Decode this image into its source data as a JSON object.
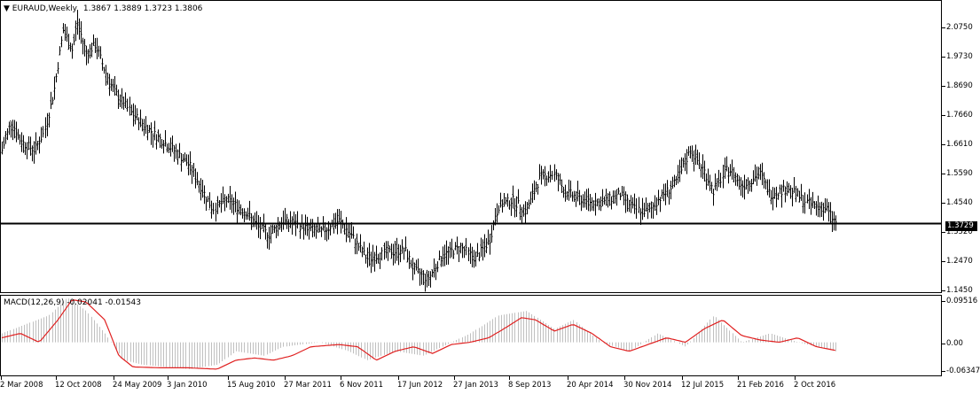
{
  "main_caption": {
    "arrow": "▼",
    "symbol": "EURAUD,Weekly",
    "ohlc": "1.3867 1.3889 1.3723 1.3806"
  },
  "macd_caption": "MACD(12,26,9) -0.02041 -0.01543",
  "price_axis": [
    "2.0750",
    "1.9730",
    "1.8690",
    "1.7660",
    "1.6610",
    "1.5590",
    "1.4540",
    "1.3520",
    "1.2470",
    "1.1450"
  ],
  "current_price": "1.3729",
  "macd_axis": [
    "0.09516",
    "0.00",
    "-0.06347"
  ],
  "time_axis": [
    "2 Mar 2008",
    "12 Oct 2008",
    "24 May 2009",
    "3 Jan 2010",
    "15 Aug 2010",
    "27 Mar 2011",
    "6 Nov 2011",
    "17 Jun 2012",
    "27 Jan 2013",
    "8 Sep 2013",
    "20 Apr 2014",
    "30 Nov 2014",
    "12 Jul 2015",
    "21 Feb 2016",
    "2 Oct 2016"
  ],
  "colors": {
    "bars": "#000000",
    "signal_line": "#e02020",
    "histogram": "#c0c0c0",
    "price_line": "#000000"
  },
  "chart_data": {
    "type": "line",
    "title": "EURAUD,Weekly",
    "ylim": [
      1.145,
      2.12
    ],
    "price_path": [
      [
        0,
        1.62
      ],
      [
        0.01,
        1.72
      ],
      [
        0.02,
        1.65
      ],
      [
        0.035,
        1.62
      ],
      [
        0.045,
        1.68
      ],
      [
        0.055,
        1.82
      ],
      [
        0.065,
        2.03
      ],
      [
        0.075,
        1.96
      ],
      [
        0.08,
        2.06
      ],
      [
        0.09,
        1.95
      ],
      [
        0.1,
        1.98
      ],
      [
        0.11,
        1.89
      ],
      [
        0.12,
        1.82
      ],
      [
        0.14,
        1.74
      ],
      [
        0.16,
        1.68
      ],
      [
        0.18,
        1.63
      ],
      [
        0.2,
        1.57
      ],
      [
        0.215,
        1.48
      ],
      [
        0.225,
        1.42
      ],
      [
        0.24,
        1.45
      ],
      [
        0.26,
        1.41
      ],
      [
        0.27,
        1.37
      ],
      [
        0.285,
        1.33
      ],
      [
        0.3,
        1.38
      ],
      [
        0.32,
        1.36
      ],
      [
        0.34,
        1.34
      ],
      [
        0.36,
        1.38
      ],
      [
        0.375,
        1.32
      ],
      [
        0.39,
        1.25
      ],
      [
        0.41,
        1.27
      ],
      [
        0.43,
        1.28
      ],
      [
        0.44,
        1.21
      ],
      [
        0.455,
        1.18
      ],
      [
        0.47,
        1.26
      ],
      [
        0.49,
        1.29
      ],
      [
        0.505,
        1.25
      ],
      [
        0.52,
        1.31
      ],
      [
        0.53,
        1.43
      ],
      [
        0.545,
        1.45
      ],
      [
        0.56,
        1.41
      ],
      [
        0.575,
        1.53
      ],
      [
        0.59,
        1.54
      ],
      [
        0.6,
        1.48
      ],
      [
        0.62,
        1.45
      ],
      [
        0.64,
        1.44
      ],
      [
        0.66,
        1.47
      ],
      [
        0.675,
        1.42
      ],
      [
        0.69,
        1.41
      ],
      [
        0.7,
        1.45
      ],
      [
        0.72,
        1.51
      ],
      [
        0.735,
        1.62
      ],
      [
        0.75,
        1.55
      ],
      [
        0.76,
        1.48
      ],
      [
        0.775,
        1.56
      ],
      [
        0.79,
        1.5
      ],
      [
        0.81,
        1.54
      ],
      [
        0.82,
        1.47
      ],
      [
        0.84,
        1.49
      ],
      [
        0.86,
        1.44
      ],
      [
        0.88,
        1.42
      ],
      [
        0.89,
        1.37
      ]
    ],
    "macd_ylim": [
      -0.07,
      0.1
    ],
    "macd_signal_path": [
      [
        0,
        0.01
      ],
      [
        0.02,
        0.02
      ],
      [
        0.04,
        0.0
      ],
      [
        0.06,
        0.05
      ],
      [
        0.075,
        0.095
      ],
      [
        0.09,
        0.09
      ],
      [
        0.11,
        0.05
      ],
      [
        0.125,
        -0.03
      ],
      [
        0.14,
        -0.055
      ],
      [
        0.17,
        -0.057
      ],
      [
        0.2,
        -0.057
      ],
      [
        0.23,
        -0.06
      ],
      [
        0.25,
        -0.04
      ],
      [
        0.27,
        -0.035
      ],
      [
        0.29,
        -0.04
      ],
      [
        0.31,
        -0.03
      ],
      [
        0.33,
        -0.01
      ],
      [
        0.36,
        -0.005
      ],
      [
        0.38,
        -0.01
      ],
      [
        0.4,
        -0.04
      ],
      [
        0.42,
        -0.02
      ],
      [
        0.44,
        -0.01
      ],
      [
        0.46,
        -0.025
      ],
      [
        0.48,
        -0.005
      ],
      [
        0.5,
        0.0
      ],
      [
        0.52,
        0.01
      ],
      [
        0.54,
        0.035
      ],
      [
        0.555,
        0.055
      ],
      [
        0.57,
        0.05
      ],
      [
        0.59,
        0.025
      ],
      [
        0.61,
        0.04
      ],
      [
        0.63,
        0.02
      ],
      [
        0.65,
        -0.01
      ],
      [
        0.67,
        -0.02
      ],
      [
        0.69,
        -0.005
      ],
      [
        0.71,
        0.01
      ],
      [
        0.73,
        0.0
      ],
      [
        0.75,
        0.03
      ],
      [
        0.77,
        0.05
      ],
      [
        0.79,
        0.015
      ],
      [
        0.81,
        0.005
      ],
      [
        0.83,
        0.0
      ],
      [
        0.85,
        0.01
      ],
      [
        0.87,
        -0.01
      ],
      [
        0.89,
        -0.018
      ]
    ],
    "macd_hist_path": [
      [
        0,
        0.02
      ],
      [
        0.05,
        0.06
      ],
      [
        0.07,
        0.1
      ],
      [
        0.09,
        0.07
      ],
      [
        0.11,
        0.02
      ],
      [
        0.13,
        -0.04
      ],
      [
        0.15,
        -0.05
      ],
      [
        0.2,
        -0.06
      ],
      [
        0.23,
        -0.05
      ],
      [
        0.25,
        -0.02
      ],
      [
        0.28,
        -0.03
      ],
      [
        0.3,
        -0.01
      ],
      [
        0.34,
        0.0
      ],
      [
        0.37,
        -0.02
      ],
      [
        0.39,
        -0.04
      ],
      [
        0.42,
        -0.02
      ],
      [
        0.45,
        -0.03
      ],
      [
        0.48,
        0.0
      ],
      [
        0.5,
        0.02
      ],
      [
        0.53,
        0.06
      ],
      [
        0.56,
        0.07
      ],
      [
        0.59,
        0.03
      ],
      [
        0.61,
        0.05
      ],
      [
        0.64,
        0.0
      ],
      [
        0.67,
        -0.02
      ],
      [
        0.7,
        0.02
      ],
      [
        0.73,
        -0.01
      ],
      [
        0.76,
        0.06
      ],
      [
        0.79,
        0.0
      ],
      [
        0.82,
        0.02
      ],
      [
        0.85,
        0.0
      ],
      [
        0.89,
        -0.02
      ]
    ]
  }
}
